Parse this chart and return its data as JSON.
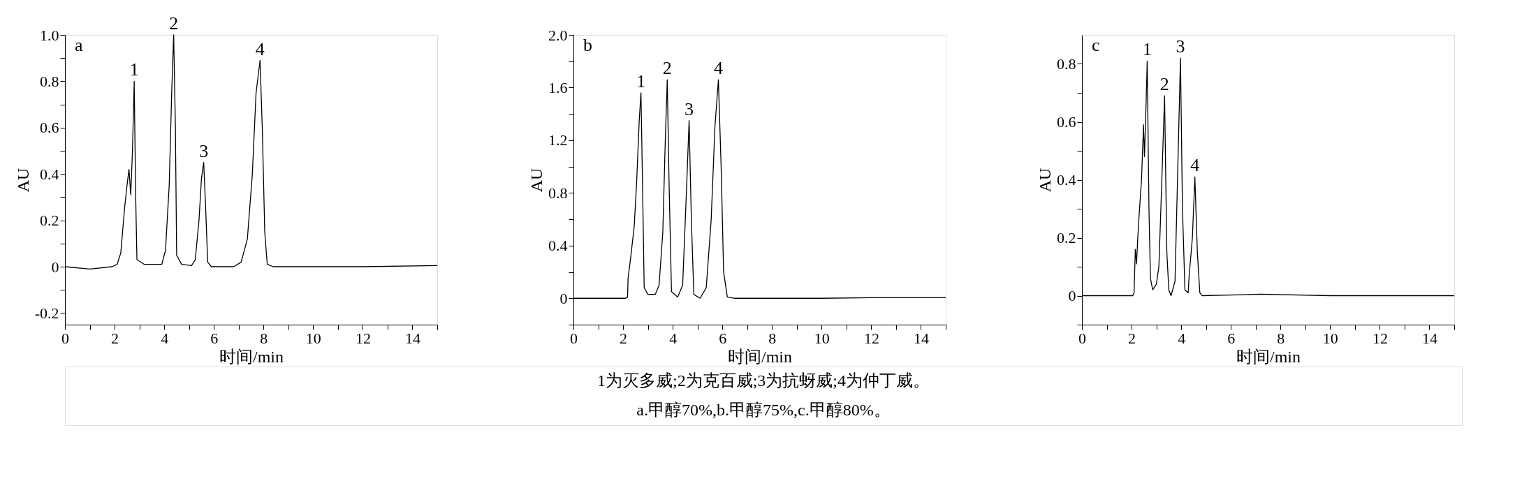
{
  "chart_data": [
    {
      "type": "line",
      "title": "a",
      "xlabel": "时间/min",
      "ylabel": "AU",
      "xlim": [
        0,
        15
      ],
      "ylim": [
        -0.25,
        1.0
      ],
      "xticks": [
        0,
        {
          "value": 1,
          "label": null
        },
        2,
        {
          "value": 3,
          "label": null
        },
        4,
        {
          "value": 5,
          "label": null
        },
        6,
        {
          "value": 7,
          "label": null
        },
        8,
        {
          "value": 9,
          "label": null
        },
        10,
        {
          "value": 11,
          "label": null
        },
        12,
        {
          "value": 13,
          "label": null
        },
        14,
        {
          "value": 15,
          "label": null
        }
      ],
      "yticks": [
        {
          "value": -0.2,
          "label": "-0.2"
        },
        {
          "value": -0.1,
          "label": null
        },
        0,
        {
          "value": 0.1,
          "label": null
        },
        0.2,
        {
          "value": 0.3,
          "label": null
        },
        0.4,
        {
          "value": 0.5,
          "label": null
        },
        0.6,
        {
          "value": 0.7,
          "label": null
        },
        0.8,
        {
          "value": 0.9,
          "label": null
        },
        {
          "value": 1.0,
          "label": "1.0"
        }
      ],
      "x": [
        0,
        1,
        1.9,
        2.1,
        2.25,
        2.4,
        2.5,
        2.58,
        2.65,
        2.72,
        2.79,
        2.85,
        2.9,
        3.2,
        3.5,
        3.9,
        4.05,
        4.2,
        4.3,
        4.38,
        4.45,
        4.5,
        4.7,
        5.1,
        5.25,
        5.4,
        5.5,
        5.59,
        5.67,
        5.75,
        5.9,
        6.8,
        7.1,
        7.35,
        7.55,
        7.7,
        7.86,
        7.95,
        8.05,
        8.15,
        8.4,
        10,
        12,
        15
      ],
      "series": [
        {
          "color": "#000000",
          "values": [
            0,
            -0.01,
            0,
            0.01,
            0.06,
            0.25,
            0.35,
            0.42,
            0.31,
            0.5,
            0.8,
            0.3,
            0.03,
            0.01,
            0.01,
            0.01,
            0.07,
            0.35,
            0.75,
            1.0,
            0.6,
            0.05,
            0.01,
            0.005,
            0.03,
            0.2,
            0.38,
            0.45,
            0.25,
            0.02,
            0,
            0,
            0.02,
            0.12,
            0.4,
            0.75,
            0.89,
            0.6,
            0.15,
            0.01,
            0,
            0,
            0,
            0.005
          ]
        }
      ],
      "annotations": [
        {
          "text": "1",
          "x": 2.79,
          "y": 0.8
        },
        {
          "text": "2",
          "x": 4.38,
          "y": 1.0
        },
        {
          "text": "3",
          "x": 5.59,
          "y": 0.45
        },
        {
          "text": "4",
          "x": 7.86,
          "y": 0.89
        }
      ]
    },
    {
      "type": "line",
      "title": "b",
      "xlabel": "时间/min",
      "ylabel": "AU",
      "xlim": [
        0,
        15
      ],
      "ylim": [
        -0.2,
        2.0
      ],
      "xticks": [
        0,
        {
          "value": 1,
          "label": null
        },
        2,
        {
          "value": 3,
          "label": null
        },
        4,
        {
          "value": 5,
          "label": null
        },
        6,
        {
          "value": 7,
          "label": null
        },
        8,
        {
          "value": 9,
          "label": null
        },
        10,
        {
          "value": 11,
          "label": null
        },
        12,
        {
          "value": 13,
          "label": null
        },
        14,
        {
          "value": 15,
          "label": null
        }
      ],
      "yticks": [
        {
          "value": -0.2,
          "label": null
        },
        0,
        {
          "value": 0.2,
          "label": null
        },
        0.4,
        {
          "value": 0.6,
          "label": null
        },
        0.8,
        {
          "value": 1.0,
          "label": null
        },
        1.2,
        {
          "value": 1.4,
          "label": null
        },
        1.6,
        {
          "value": 1.8,
          "label": null
        },
        {
          "value": 2.0,
          "label": "2.0"
        }
      ],
      "x": [
        0,
        2.1,
        2.18,
        2.2,
        2.3,
        2.45,
        2.55,
        2.65,
        2.72,
        2.78,
        2.85,
        3.0,
        3.3,
        3.45,
        3.6,
        3.7,
        3.78,
        3.85,
        3.95,
        4.2,
        4.4,
        4.55,
        4.66,
        4.75,
        4.85,
        5.1,
        5.35,
        5.55,
        5.7,
        5.84,
        5.95,
        6.05,
        6.2,
        6.5,
        10,
        12,
        15
      ],
      "series": [
        {
          "color": "#000000",
          "values": [
            0,
            0,
            0.01,
            0.15,
            0.3,
            0.55,
            0.9,
            1.35,
            1.56,
            0.9,
            0.08,
            0.03,
            0.03,
            0.1,
            0.5,
            1.2,
            1.66,
            0.9,
            0.05,
            0.01,
            0.1,
            0.8,
            1.35,
            0.6,
            0.03,
            0,
            0.08,
            0.6,
            1.3,
            1.66,
            1.0,
            0.2,
            0.01,
            0,
            0,
            0.005,
            0.005
          ]
        }
      ],
      "annotations": [
        {
          "text": "1",
          "x": 2.72,
          "y": 1.56
        },
        {
          "text": "2",
          "x": 3.78,
          "y": 1.66
        },
        {
          "text": "3",
          "x": 4.66,
          "y": 1.35
        },
        {
          "text": "4",
          "x": 5.84,
          "y": 1.66
        },
        "1为灭多威;2为克百威;3为抗蚜威;4为仲丁威。",
        "a.甲醇70%,b.甲醇75%,c.甲醇80%。"
      ]
    },
    {
      "type": "line",
      "title": "c",
      "xlabel": "时间/min",
      "ylabel": "AU",
      "xlim": [
        0,
        15
      ],
      "ylim": [
        -0.1,
        0.9
      ],
      "xticks": [
        0,
        {
          "value": 1,
          "label": null
        },
        2,
        {
          "value": 3,
          "label": null
        },
        4,
        {
          "value": 5,
          "label": null
        },
        6,
        {
          "value": 7,
          "label": null
        },
        8,
        {
          "value": 9,
          "label": null
        },
        10,
        {
          "value": 11,
          "label": null
        },
        12,
        {
          "value": 13,
          "label": null
        },
        14,
        {
          "value": 15,
          "label": null
        }
      ],
      "yticks": [
        {
          "value": -0.1,
          "label": null
        },
        0,
        {
          "value": 0.1,
          "label": null
        },
        0.2,
        {
          "value": 0.3,
          "label": null
        },
        0.4,
        {
          "value": 0.5,
          "label": null
        },
        0.6,
        {
          "value": 0.7,
          "label": null
        },
        0.8
      ],
      "x": [
        0,
        2.05,
        2.1,
        2.15,
        2.2,
        2.25,
        2.29,
        2.4,
        2.48,
        2.52,
        2.58,
        2.63,
        2.7,
        2.76,
        2.85,
        3.0,
        3.1,
        3.2,
        3.33,
        3.42,
        3.5,
        3.59,
        3.75,
        3.85,
        3.97,
        4.05,
        4.15,
        4.28,
        4.32,
        4.45,
        4.55,
        4.65,
        4.75,
        4.85,
        7.2,
        10,
        15
      ],
      "series": [
        {
          "color": "#000000",
          "values": [
            0,
            0,
            0.01,
            0.16,
            0.11,
            0.2,
            0.26,
            0.4,
            0.59,
            0.48,
            0.65,
            0.81,
            0.3,
            0.06,
            0.02,
            0.04,
            0.1,
            0.35,
            0.69,
            0.15,
            0.02,
            0,
            0.05,
            0.4,
            0.82,
            0.3,
            0.02,
            0.01,
            0.07,
            0.2,
            0.41,
            0.15,
            0.01,
            0,
            0.005,
            0,
            0
          ]
        }
      ],
      "annotations": [
        {
          "text": "1",
          "x": 2.63,
          "y": 0.81
        },
        {
          "text": "2",
          "x": 3.33,
          "y": 0.69
        },
        {
          "text": "3",
          "x": 3.97,
          "y": 0.82
        },
        {
          "text": "4",
          "x": 4.55,
          "y": 0.41
        }
      ]
    }
  ]
}
